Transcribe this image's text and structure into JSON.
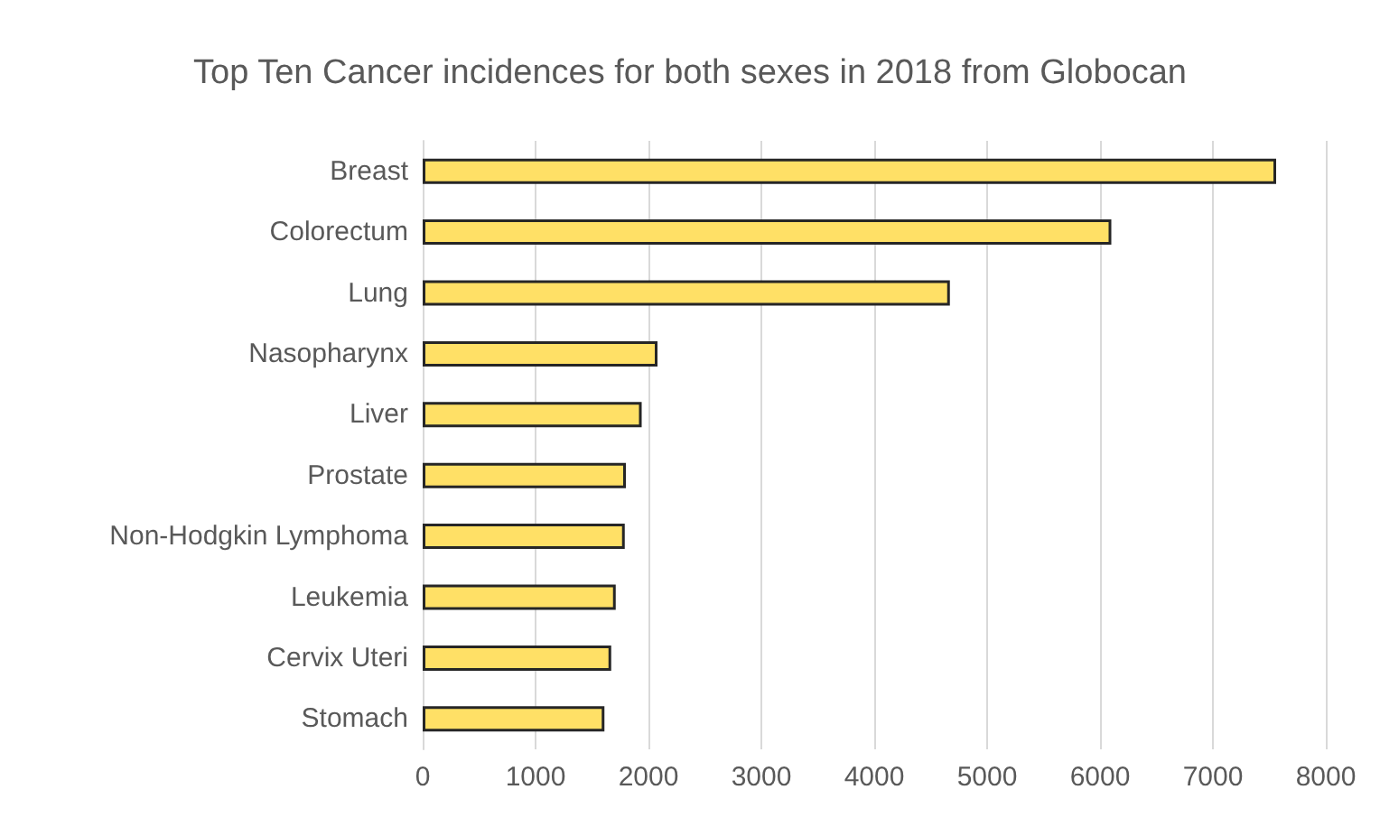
{
  "chart_data": {
    "type": "bar",
    "orientation": "horizontal",
    "title": "Top Ten Cancer incidences for both sexes in 2018 from Globocan",
    "categories": [
      "Breast",
      "Colorectum",
      "Lung",
      "Nasopharynx",
      "Liver",
      "Prostate",
      "Non-Hodgkin Lymphoma",
      "Leukemia",
      "Cervix Uteri",
      "Stomach"
    ],
    "values": [
      7560,
      6100,
      4670,
      2080,
      1940,
      1800,
      1790,
      1710,
      1670,
      1610
    ],
    "color": "#ffe066",
    "xlim": [
      0,
      8000
    ],
    "xticks": [
      0,
      1000,
      2000,
      3000,
      4000,
      5000,
      6000,
      7000,
      8000
    ],
    "grid": "x"
  }
}
